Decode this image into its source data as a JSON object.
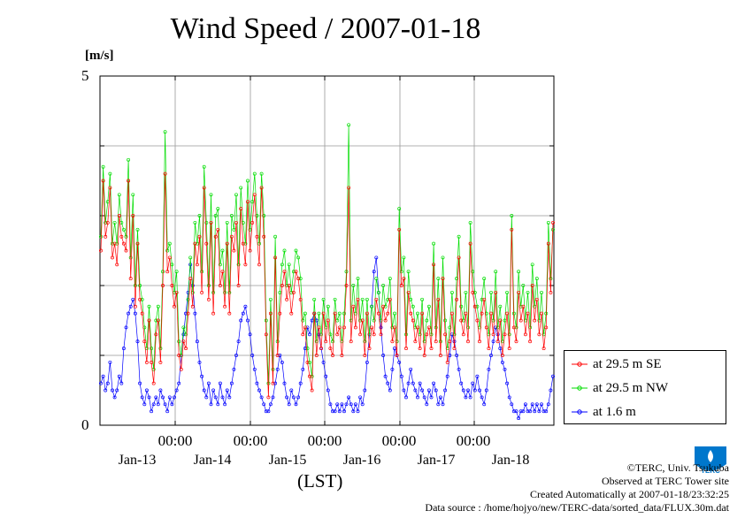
{
  "chart_data": {
    "type": "line",
    "title": "Wind Speed / 2007-01-18",
    "ylabel": "[m/s]",
    "xlabel": "(LST)",
    "ylim": [
      0,
      5
    ],
    "y_ticks": [
      "0",
      "5"
    ],
    "x_tick_labels": [
      "00:00",
      "00:00",
      "00:00",
      "00:00",
      "00:00"
    ],
    "x_date_labels": [
      "Jan-13",
      "Jan-14",
      "Jan-15",
      "Jan-16",
      "Jan-17",
      "Jan-18"
    ],
    "grid": true,
    "legend_position": "right-bottom",
    "series": [
      {
        "name": "at 29.5 m SE",
        "color": "#ff0000",
        "values": [
          2.5,
          3.5,
          2.7,
          2.9,
          3.4,
          2.4,
          2.6,
          2.3,
          3.0,
          2.7,
          2.6,
          2.5,
          3.5,
          2.1,
          3.0,
          1.7,
          2.6,
          1.8,
          1.6,
          1.2,
          0.9,
          1.5,
          0.9,
          0.6,
          1.3,
          1.5,
          0.9,
          2.0,
          3.6,
          2.2,
          2.4,
          2.0,
          1.7,
          1.9,
          1.0,
          0.8,
          1.2,
          1.1,
          1.6,
          2.1,
          1.7,
          2.6,
          2.3,
          2.7,
          1.9,
          3.4,
          2.6,
          1.8,
          2.9,
          1.6,
          2.7,
          2.8,
          2.0,
          2.2,
          1.7,
          2.6,
          1.6,
          2.7,
          2.5,
          2.9,
          2.0,
          3.1,
          2.6,
          2.3,
          3.2,
          2.5,
          2.9,
          3.3,
          2.7,
          2.3,
          3.4,
          2.7,
          1.3,
          0.4,
          1.6,
          0.6,
          2.4,
          1.0,
          1.6,
          2.0,
          2.2,
          1.8,
          2.0,
          1.6,
          1.9,
          2.2,
          2.1,
          1.8,
          1.3,
          1.4,
          0.9,
          0.7,
          0.5,
          1.6,
          1.0,
          1.4,
          1.1,
          1.6,
          1.2,
          1.5,
          1.1,
          1.0,
          1.6,
          1.3,
          1.4,
          1.0,
          1.4,
          2.0,
          3.4,
          1.2,
          1.7,
          1.4,
          1.8,
          1.3,
          1.5,
          1.0,
          1.6,
          1.1,
          1.4,
          1.3,
          1.8,
          1.6,
          1.3,
          1.7,
          1.5,
          1.6,
          1.8,
          1.2,
          1.4,
          1.0,
          2.8,
          2.0,
          2.1,
          1.1,
          1.9,
          1.6,
          1.5,
          1.2,
          1.4,
          1.1,
          1.6,
          1.0,
          1.3,
          1.4,
          1.1,
          2.3,
          1.2,
          1.8,
          1.0,
          2.1,
          1.3,
          0.9,
          1.2,
          1.6,
          1.1,
          1.8,
          2.4,
          1.5,
          1.3,
          1.6,
          1.2,
          2.6,
          1.9,
          1.7,
          1.5,
          1.2,
          1.6,
          1.8,
          1.4,
          1.1,
          1.6,
          1.3,
          1.9,
          1.2,
          1.5,
          1.0,
          1.3,
          1.6,
          1.1,
          2.8,
          1.4,
          1.2,
          1.9,
          1.5,
          1.7,
          1.3,
          1.6,
          1.2,
          2.0,
          1.5,
          1.8,
          1.3,
          1.6,
          1.1,
          1.4,
          2.6,
          1.9,
          2.9
        ]
      },
      {
        "name": "at 29.5 m NW",
        "color": "#00dd00",
        "values": [
          2.7,
          3.7,
          2.9,
          3.2,
          3.6,
          2.6,
          2.9,
          2.6,
          3.3,
          2.9,
          2.8,
          2.7,
          3.8,
          2.4,
          3.3,
          2.0,
          2.8,
          2.0,
          1.8,
          1.4,
          1.1,
          1.7,
          1.1,
          0.8,
          1.5,
          1.7,
          1.1,
          2.2,
          4.2,
          2.5,
          2.6,
          2.3,
          1.9,
          2.2,
          1.2,
          1.0,
          1.4,
          1.3,
          1.8,
          2.4,
          1.9,
          2.9,
          2.6,
          3.0,
          2.2,
          3.7,
          2.9,
          2.0,
          3.3,
          1.9,
          3.0,
          3.1,
          2.3,
          2.5,
          1.9,
          2.9,
          1.9,
          3.0,
          2.8,
          3.3,
          2.3,
          3.4,
          2.9,
          2.6,
          3.5,
          2.8,
          3.2,
          3.6,
          3.0,
          2.6,
          3.6,
          3.0,
          1.5,
          0.6,
          1.8,
          0.8,
          2.7,
          1.2,
          1.9,
          2.3,
          2.5,
          2.0,
          2.3,
          1.9,
          2.2,
          2.5,
          2.4,
          2.1,
          1.5,
          1.6,
          1.1,
          0.9,
          0.7,
          1.8,
          1.2,
          1.6,
          1.3,
          1.8,
          1.4,
          1.7,
          1.3,
          1.2,
          1.8,
          1.5,
          1.6,
          1.2,
          1.6,
          2.2,
          4.3,
          1.5,
          2.0,
          1.6,
          2.1,
          1.5,
          1.8,
          1.2,
          1.8,
          1.3,
          1.7,
          1.5,
          2.1,
          1.9,
          1.5,
          2.0,
          1.7,
          1.8,
          2.1,
          1.4,
          1.6,
          1.2,
          3.1,
          2.2,
          2.4,
          1.3,
          2.2,
          1.8,
          1.7,
          1.4,
          1.6,
          1.3,
          1.8,
          1.2,
          1.5,
          1.7,
          1.3,
          2.6,
          1.4,
          2.1,
          1.2,
          2.4,
          1.5,
          1.1,
          1.4,
          1.9,
          1.3,
          2.1,
          2.7,
          1.7,
          1.5,
          1.9,
          1.4,
          2.9,
          2.2,
          1.9,
          1.7,
          1.4,
          1.8,
          2.1,
          1.6,
          1.3,
          1.9,
          1.5,
          2.2,
          1.4,
          1.7,
          1.2,
          1.5,
          1.9,
          1.3,
          3.0,
          1.6,
          1.4,
          2.2,
          1.7,
          2.0,
          1.5,
          1.9,
          1.4,
          2.3,
          1.7,
          2.1,
          1.5,
          1.9,
          1.3,
          1.6,
          2.9,
          2.1,
          2.8
        ]
      },
      {
        "name": "at 1.6 m",
        "color": "#0000ff",
        "values": [
          0.6,
          0.7,
          0.5,
          0.6,
          0.9,
          0.5,
          0.4,
          0.5,
          0.7,
          0.6,
          1.1,
          1.4,
          1.6,
          1.7,
          1.8,
          1.6,
          1.2,
          0.6,
          0.4,
          0.3,
          0.5,
          0.4,
          0.2,
          0.3,
          0.4,
          0.3,
          0.5,
          0.4,
          0.3,
          0.2,
          0.4,
          0.3,
          0.4,
          0.5,
          0.6,
          1.0,
          1.3,
          1.6,
          1.9,
          2.3,
          2.0,
          1.6,
          1.2,
          0.9,
          0.7,
          0.5,
          0.4,
          0.6,
          0.3,
          0.5,
          0.4,
          0.3,
          0.6,
          0.4,
          0.3,
          0.5,
          0.4,
          0.6,
          0.8,
          1.0,
          1.2,
          1.5,
          1.6,
          1.7,
          1.5,
          1.3,
          1.0,
          0.8,
          0.6,
          0.5,
          0.4,
          0.3,
          0.2,
          0.2,
          0.3,
          0.4,
          0.6,
          0.8,
          1.0,
          0.9,
          0.6,
          0.4,
          0.3,
          0.5,
          0.4,
          0.3,
          0.4,
          0.6,
          0.8,
          1.1,
          1.4,
          1.3,
          1.5,
          1.6,
          1.5,
          1.3,
          1.1,
          0.9,
          0.7,
          0.5,
          0.3,
          0.2,
          0.2,
          0.3,
          0.2,
          0.3,
          0.2,
          0.3,
          0.4,
          0.3,
          0.2,
          0.3,
          0.2,
          0.4,
          0.3,
          0.5,
          0.9,
          1.3,
          1.7,
          2.2,
          2.4,
          1.9,
          1.4,
          1.0,
          0.7,
          0.6,
          0.5,
          0.8,
          1.1,
          1.0,
          0.9,
          0.7,
          0.5,
          0.4,
          0.6,
          0.8,
          0.6,
          0.5,
          0.4,
          0.6,
          0.5,
          0.4,
          0.3,
          0.5,
          0.4,
          0.6,
          0.5,
          0.3,
          0.4,
          0.3,
          0.5,
          0.7,
          1.0,
          1.3,
          1.2,
          1.0,
          0.8,
          0.6,
          0.5,
          0.4,
          0.5,
          0.4,
          0.6,
          0.5,
          0.7,
          0.5,
          0.4,
          0.3,
          0.5,
          0.8,
          1.0,
          1.2,
          1.4,
          1.3,
          1.1,
          0.9,
          0.8,
          0.6,
          0.4,
          0.3,
          0.2,
          0.2,
          0.1,
          0.2,
          0.2,
          0.3,
          0.2,
          0.2,
          0.3,
          0.2,
          0.3,
          0.2,
          0.3,
          0.2,
          0.2,
          0.3,
          0.5,
          0.7
        ]
      }
    ]
  },
  "lst_label": "(LST)",
  "credits": {
    "line1": "©TERC, Univ. Tsukuba",
    "line2": "Observed at TERC Tower site",
    "line3": "Created Automatically at 2007-01-18/23:32:25",
    "line4": "Data source : /home/hojyo/new/TERC-data/sorted_data/FLUX.30m.dat"
  },
  "logo": {
    "text": "TERC",
    "color": "#0077cc"
  }
}
